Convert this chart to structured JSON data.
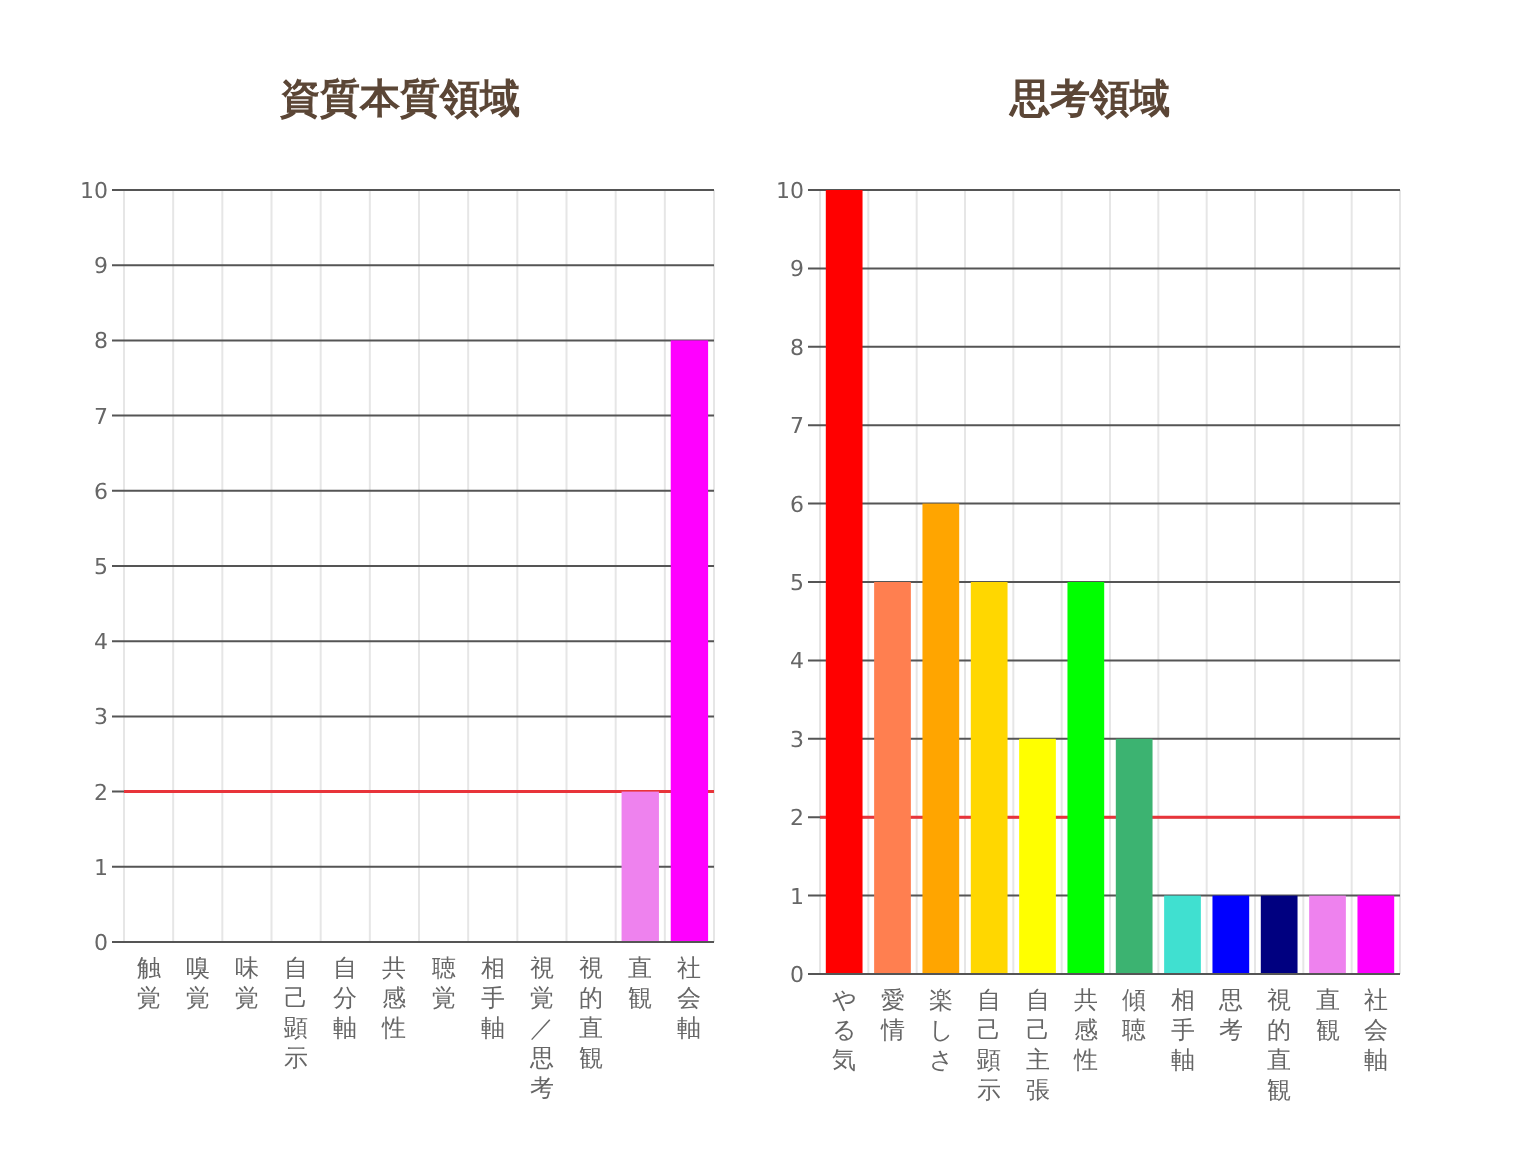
{
  "chart_data": [
    {
      "type": "bar",
      "title": "資質本質領域",
      "categories": [
        "触覚",
        "嗅覚",
        "味覚",
        "自己顕示",
        "自分軸",
        "共感性",
        "聴覚",
        "相手軸",
        "視覚／思考",
        "視的直観",
        "直観",
        "社会軸"
      ],
      "values": [
        0,
        0,
        0,
        0,
        0,
        0,
        0,
        0,
        0,
        0,
        2,
        8
      ],
      "colors": [
        null,
        null,
        null,
        null,
        null,
        null,
        null,
        null,
        null,
        null,
        "#ee82ee",
        "#ff00ff"
      ],
      "ylim": [
        0,
        10
      ],
      "yticks": [
        0,
        1,
        2,
        3,
        4,
        5,
        6,
        7,
        8,
        9,
        10
      ],
      "grid": true,
      "ref_lines": [
        {
          "axis": "y",
          "value": 2,
          "color": "#e8343a"
        }
      ]
    },
    {
      "type": "bar",
      "title": "思考領域",
      "categories": [
        "やる気",
        "愛情",
        "楽しさ",
        "自己顕示",
        "自己主張",
        "共感性",
        "傾聴",
        "相手軸",
        "思考",
        "視的直観",
        "直観",
        "社会軸"
      ],
      "values": [
        10,
        5,
        6,
        5,
        3,
        5,
        3,
        1,
        1,
        1,
        1,
        1
      ],
      "colors": [
        "#ff0000",
        "#ff7f50",
        "#ffa500",
        "#ffd700",
        "#ffff00",
        "#00ff00",
        "#3cb371",
        "#40e0d0",
        "#0000ff",
        "#000080",
        "#ee82ee",
        "#ff00ff"
      ],
      "ylim": [
        0,
        10
      ],
      "yticks": [
        0,
        1,
        2,
        3,
        4,
        5,
        6,
        7,
        8,
        9,
        10
      ],
      "grid": true,
      "ref_lines": [
        {
          "axis": "y",
          "value": 2,
          "color": "#e8343a"
        }
      ]
    }
  ]
}
